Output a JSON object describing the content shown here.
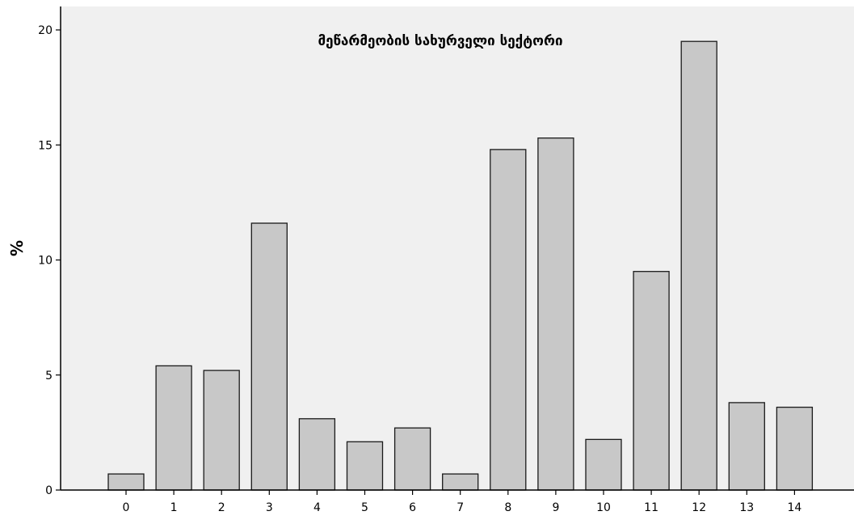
{
  "chart_data": {
    "type": "bar",
    "title": "მეწარმეობის სახურველი სექტორი",
    "xlabel": "",
    "ylabel": "%",
    "categories": [
      "0",
      "1",
      "2",
      "3",
      "4",
      "5",
      "6",
      "7",
      "8",
      "9",
      "10",
      "11",
      "12",
      "13",
      "14"
    ],
    "values": [
      0.7,
      5.4,
      5.2,
      11.6,
      3.1,
      2.1,
      2.7,
      0.7,
      14.8,
      15.3,
      2.2,
      9.5,
      19.5,
      3.8,
      3.6
    ],
    "ylim": [
      0,
      21
    ],
    "yticks": [
      0,
      5,
      10,
      15,
      20
    ],
    "grid": false,
    "legend": "none",
    "colors": {
      "plot_background": "#f0f0f0",
      "bar_fill": "#c8c8c8",
      "bar_stroke": "#1a1a1a",
      "axis": "#000000",
      "text": "#000000"
    }
  }
}
